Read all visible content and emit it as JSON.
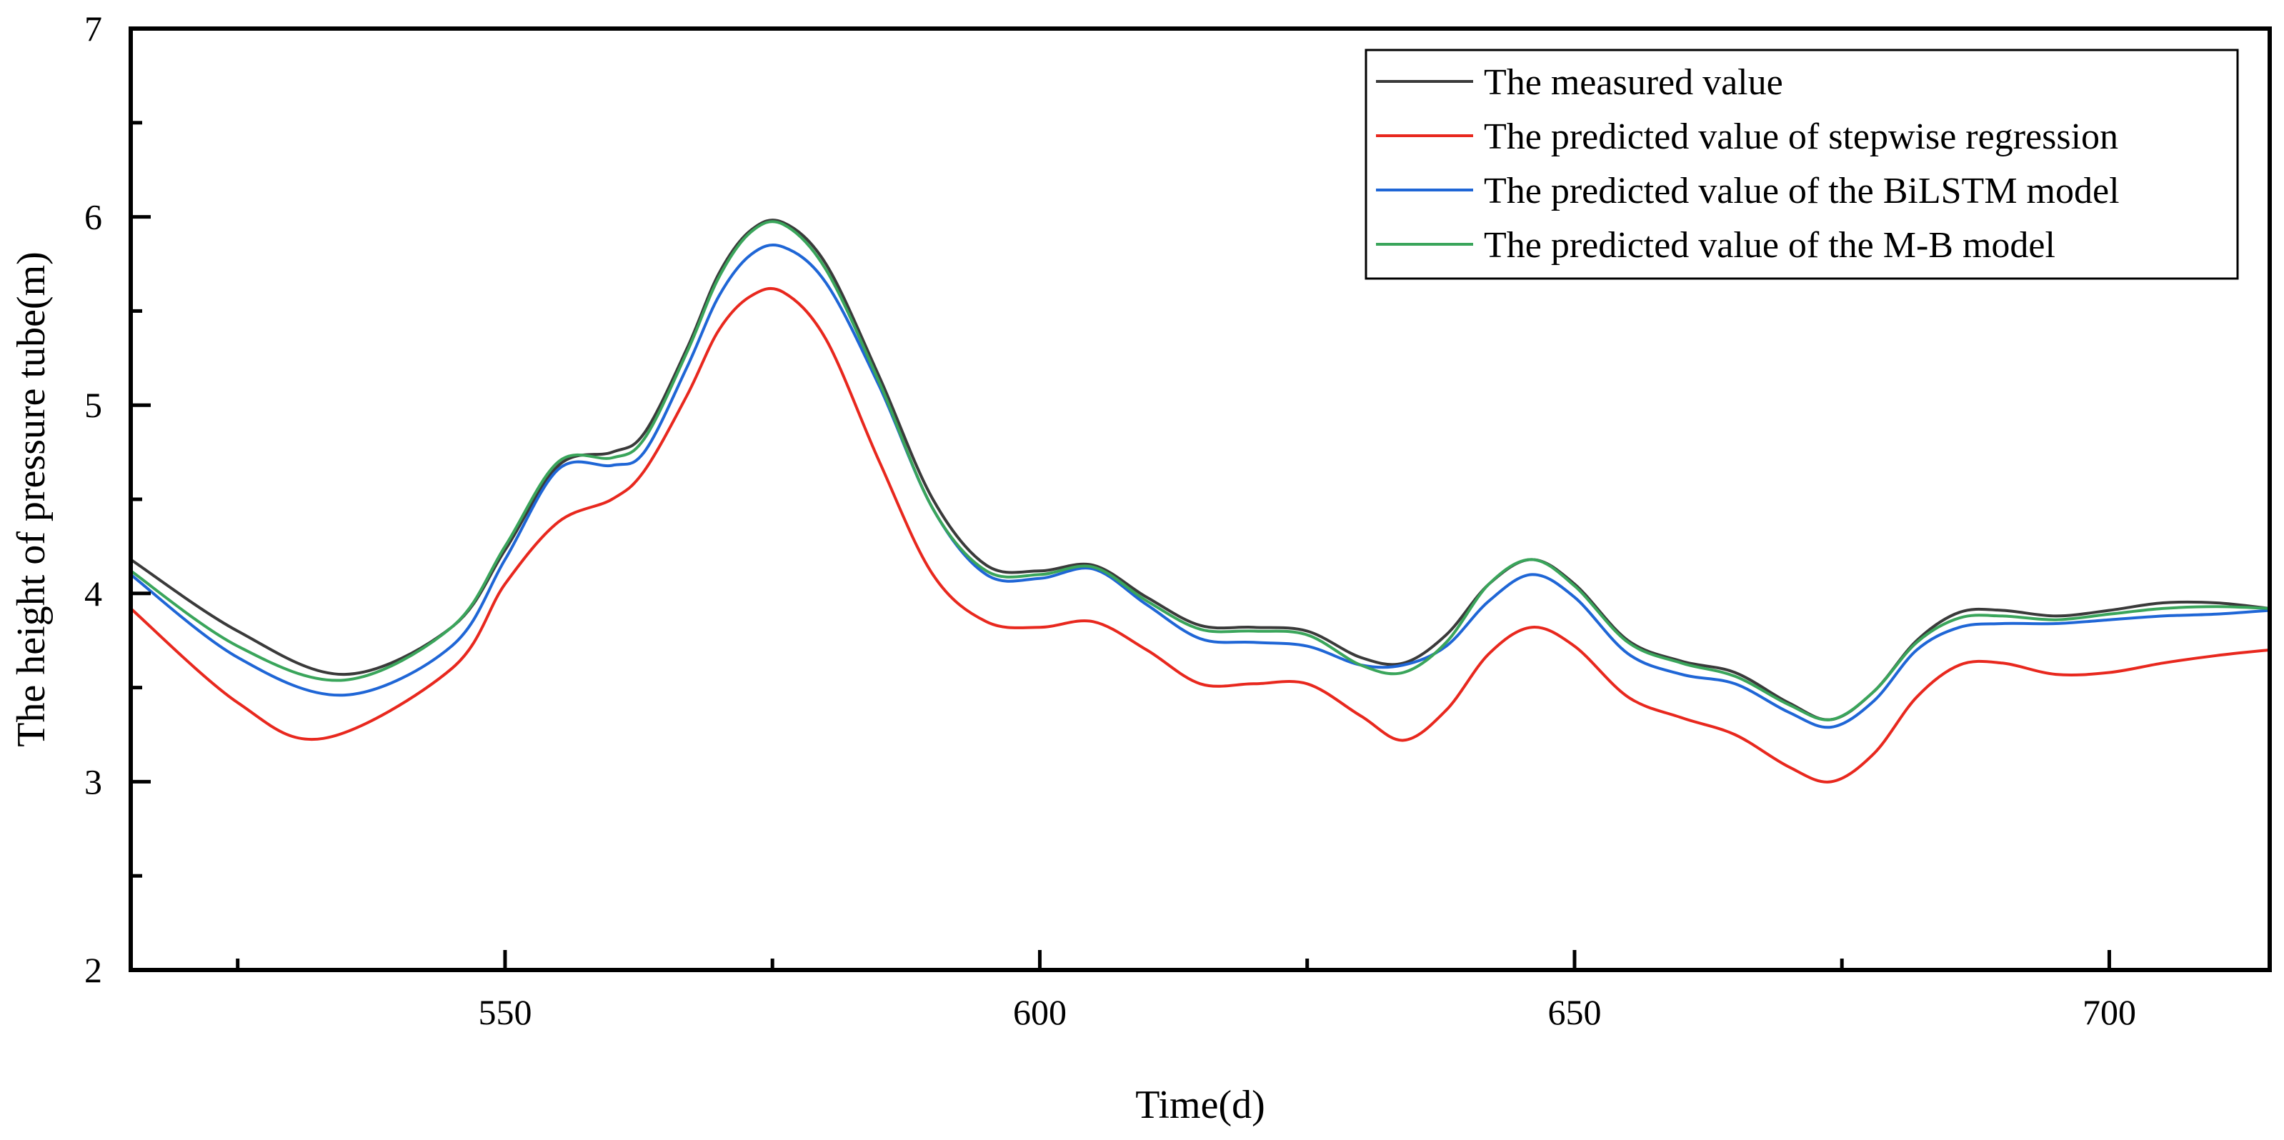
{
  "chart_data": {
    "type": "line",
    "title": "",
    "xlabel": "Time(d)",
    "ylabel": "The height of pressure tube(m)",
    "xlim": [
      515,
      715
    ],
    "ylim": [
      2,
      7
    ],
    "xticks": [
      550,
      600,
      650,
      700
    ],
    "xtick_labels": [
      "550",
      "600",
      "650",
      "700"
    ],
    "yticks": [
      2,
      3,
      4,
      5,
      6,
      7
    ],
    "ytick_labels": [
      "2",
      "3",
      "4",
      "5",
      "6",
      "7"
    ],
    "grid": false,
    "legend_position": "top-right",
    "series": [
      {
        "name": "The measured value",
        "color": "#3a3a3a",
        "x": [
          515,
          525,
          535,
          545,
          550,
          555,
          560,
          563,
          567,
          570,
          573,
          576,
          580,
          585,
          590,
          595,
          600,
          605,
          610,
          615,
          620,
          625,
          630,
          634,
          638,
          642,
          646,
          650,
          655,
          660,
          665,
          670,
          674,
          678,
          682,
          686,
          690,
          695,
          700,
          705,
          710,
          715
        ],
        "y": [
          4.18,
          3.8,
          3.57,
          3.82,
          4.23,
          4.68,
          4.75,
          4.85,
          5.3,
          5.7,
          5.93,
          5.97,
          5.75,
          5.15,
          4.5,
          4.15,
          4.12,
          4.15,
          3.98,
          3.83,
          3.82,
          3.8,
          3.66,
          3.63,
          3.78,
          4.05,
          4.18,
          4.05,
          3.75,
          3.64,
          3.58,
          3.42,
          3.33,
          3.48,
          3.75,
          3.9,
          3.91,
          3.88,
          3.91,
          3.95,
          3.95,
          3.92
        ]
      },
      {
        "name": "The predicted value of stepwise regression",
        "color": "#e8281e",
        "x": [
          515,
          525,
          533,
          545,
          550,
          555,
          560,
          563,
          567,
          570,
          573,
          576,
          580,
          585,
          590,
          595,
          600,
          605,
          610,
          615,
          620,
          625,
          630,
          634,
          638,
          642,
          646,
          650,
          655,
          660,
          665,
          670,
          674,
          678,
          682,
          686,
          690,
          695,
          700,
          705,
          710,
          715
        ],
        "y": [
          3.92,
          3.42,
          3.23,
          3.6,
          4.05,
          4.38,
          4.5,
          4.65,
          5.05,
          5.4,
          5.58,
          5.6,
          5.35,
          4.7,
          4.1,
          3.85,
          3.82,
          3.85,
          3.7,
          3.52,
          3.52,
          3.52,
          3.35,
          3.22,
          3.38,
          3.68,
          3.82,
          3.72,
          3.45,
          3.34,
          3.25,
          3.08,
          3.0,
          3.15,
          3.45,
          3.62,
          3.63,
          3.57,
          3.58,
          3.63,
          3.67,
          3.7
        ]
      },
      {
        "name": "The predicted value of the BiLSTM model",
        "color": "#1f66d6",
        "x": [
          515,
          525,
          535,
          545,
          550,
          555,
          560,
          563,
          567,
          570,
          573,
          576,
          580,
          585,
          590,
          595,
          600,
          605,
          610,
          615,
          620,
          625,
          630,
          634,
          638,
          642,
          646,
          650,
          655,
          660,
          665,
          670,
          674,
          678,
          682,
          686,
          690,
          695,
          700,
          705,
          710,
          715
        ],
        "y": [
          4.1,
          3.66,
          3.46,
          3.72,
          4.18,
          4.66,
          4.68,
          4.75,
          5.2,
          5.58,
          5.8,
          5.84,
          5.65,
          5.1,
          4.45,
          4.1,
          4.08,
          4.13,
          3.94,
          3.76,
          3.74,
          3.72,
          3.62,
          3.62,
          3.72,
          3.96,
          4.1,
          3.98,
          3.68,
          3.57,
          3.52,
          3.37,
          3.29,
          3.43,
          3.7,
          3.82,
          3.84,
          3.84,
          3.86,
          3.88,
          3.89,
          3.91
        ]
      },
      {
        "name": "The predicted value of the M-B model",
        "color": "#3aa55b",
        "x": [
          515,
          525,
          535,
          545,
          550,
          555,
          560,
          563,
          567,
          570,
          573,
          576,
          580,
          585,
          590,
          595,
          600,
          605,
          610,
          615,
          620,
          625,
          630,
          634,
          638,
          642,
          646,
          650,
          655,
          660,
          665,
          670,
          674,
          678,
          682,
          686,
          690,
          695,
          700,
          705,
          710,
          715
        ],
        "y": [
          4.12,
          3.72,
          3.54,
          3.82,
          4.25,
          4.7,
          4.72,
          4.82,
          5.28,
          5.68,
          5.92,
          5.96,
          5.72,
          5.12,
          4.45,
          4.12,
          4.1,
          4.14,
          3.96,
          3.81,
          3.8,
          3.78,
          3.62,
          3.58,
          3.74,
          4.05,
          4.18,
          4.04,
          3.74,
          3.63,
          3.56,
          3.41,
          3.33,
          3.48,
          3.74,
          3.87,
          3.88,
          3.86,
          3.89,
          3.92,
          3.93,
          3.92
        ]
      }
    ]
  }
}
